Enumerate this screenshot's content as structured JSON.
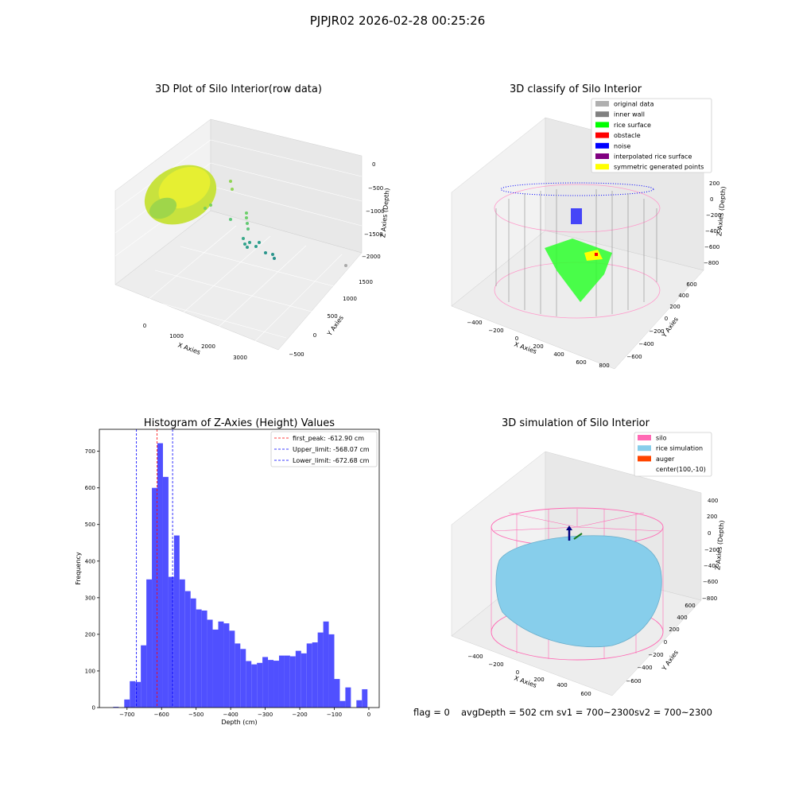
{
  "figure": {
    "suptitle": "PJPJR02 2026-02-28 00:25:26",
    "footer": {
      "flag": "flag = 0",
      "avg_depth": "avgDepth = 502 cm",
      "sv1": "sv1 = 700~2300",
      "sv2": "sv2 = 700~2300"
    }
  },
  "panels": {
    "raw": {
      "title": "3D Plot of Silo Interior(row data)",
      "xlabel": "X Axies",
      "ylabel": "Y Axies",
      "zlabel": "Z Axies (Depth)",
      "xticks": [
        "0",
        "1000",
        "2000",
        "3000"
      ],
      "yticks": [
        "−500",
        "0",
        "500",
        "1000",
        "1500"
      ],
      "zticks": [
        "0",
        "−500",
        "−1000",
        "−1500",
        "−2000"
      ]
    },
    "classify": {
      "title": "3D classify of Silo Interior",
      "xlabel": "X Axies",
      "ylabel": "Y Axies",
      "zlabel": "Z Axies (Depth)",
      "xticks": [
        "−400",
        "−200",
        "0",
        "200",
        "400",
        "600",
        "800"
      ],
      "yticks": [
        "−600",
        "−400",
        "−200",
        "0",
        "200",
        "400",
        "600"
      ],
      "zticks": [
        "200",
        "0",
        "−200",
        "−400",
        "−600",
        "−800"
      ],
      "legend": [
        {
          "label": "original data",
          "color": "#b0b0b0"
        },
        {
          "label": "inner wall",
          "color": "#808080"
        },
        {
          "label": "rice surface",
          "color": "#00ff00"
        },
        {
          "label": "obstacle",
          "color": "#ff0000"
        },
        {
          "label": "noise",
          "color": "#0000ff"
        },
        {
          "label": "interpolated rice surface",
          "color": "#800080"
        },
        {
          "label": "symmetric generated points",
          "color": "#ffff00"
        }
      ]
    },
    "simulation": {
      "title": "3D simulation of Silo Interior",
      "xlabel": "X Axies",
      "ylabel": "Y Axies",
      "zlabel": "Z Axies (Depth)",
      "xticks": [
        "−400",
        "−200",
        "0",
        "200",
        "400",
        "600"
      ],
      "yticks": [
        "−600",
        "−400",
        "−200",
        "0",
        "200",
        "400",
        "600"
      ],
      "zticks": [
        "400",
        "200",
        "0",
        "−200",
        "−400",
        "−600",
        "−800"
      ],
      "legend": [
        {
          "label": "silo",
          "color": "#ff69b4"
        },
        {
          "label": "rice simulation",
          "color": "#87ceeb"
        },
        {
          "label": "auger",
          "color": "#ff4500"
        },
        {
          "label": "center(100,-10)",
          "color": ""
        }
      ]
    }
  },
  "chart_data": {
    "type": "bar",
    "title": "Histogram of Z-Axies (Height) Values",
    "xlabel": "Depth (cm)",
    "ylabel": "Frequency",
    "xlim": [
      -780,
      30
    ],
    "ylim": [
      0,
      760
    ],
    "bar_color": "#5050ff",
    "xticks": [
      -700,
      -600,
      -500,
      -400,
      -300,
      -200,
      -100,
      0
    ],
    "xtick_labels": [
      "−700",
      "−600",
      "−500",
      "−400",
      "−300",
      "−200",
      "−100",
      "0"
    ],
    "yticks": [
      0,
      100,
      200,
      300,
      400,
      500,
      600,
      700
    ],
    "bin_edges": [
      -740,
      -724,
      -708,
      -692,
      -676,
      -660,
      -644,
      -628,
      -612,
      -596,
      -580,
      -564,
      -548,
      -532,
      -516,
      -500,
      -484,
      -468,
      -452,
      -436,
      -420,
      -404,
      -388,
      -372,
      -356,
      -340,
      -324,
      -308,
      -292,
      -276,
      -260,
      -244,
      -228,
      -212,
      -196,
      -180,
      -164,
      -148,
      -132,
      -116,
      -100,
      -84,
      -68,
      -52,
      -36,
      -20,
      -4,
      12
    ],
    "counts": [
      2,
      0,
      22,
      72,
      70,
      170,
      350,
      600,
      722,
      630,
      357,
      470,
      350,
      318,
      298,
      268,
      265,
      240,
      213,
      235,
      230,
      210,
      175,
      160,
      127,
      118,
      122,
      138,
      130,
      128,
      142,
      142,
      140,
      155,
      148,
      175,
      178,
      205,
      235,
      200,
      78,
      18,
      55,
      0,
      20,
      50,
      0
    ],
    "vlines": [
      {
        "x": -612.9,
        "label": "first_peak: -612.90 cm",
        "color": "#ff0000"
      },
      {
        "x": -568.07,
        "label": "Upper_limit: -568.07 cm",
        "color": "#0000ff"
      },
      {
        "x": -672.68,
        "label": "Lower_limit: -672.68 cm",
        "color": "#0000ff"
      }
    ],
    "legend_position": "top-right"
  }
}
